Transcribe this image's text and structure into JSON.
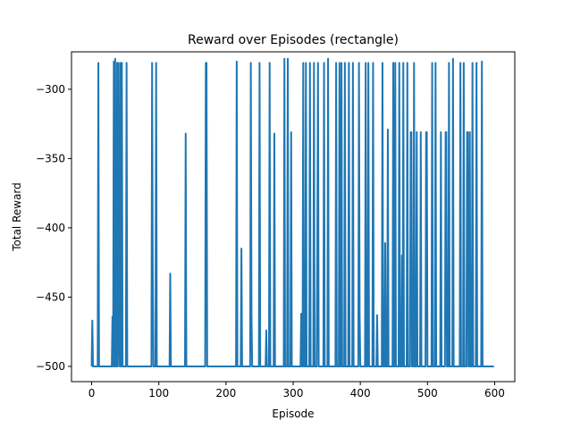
{
  "chart_data": {
    "type": "line",
    "title": "Reward over Episodes (rectangle)",
    "xlabel": "Episode",
    "ylabel": "Total Reward",
    "xlim": [
      -30,
      630
    ],
    "ylim": [
      -511,
      -273
    ],
    "xticks": [
      0,
      100,
      200,
      300,
      400,
      500,
      600
    ],
    "yticks": [
      -500,
      -450,
      -400,
      -350,
      -300
    ],
    "ytick_labels": [
      "−500",
      "−450",
      "−400",
      "−350",
      "−300"
    ],
    "grid": false,
    "line_color": "#1f77b4",
    "series": [
      {
        "points": [
          [
            0,
            -500
          ],
          [
            1,
            -467
          ],
          [
            2,
            -500
          ],
          [
            9,
            -500
          ],
          [
            10,
            -281
          ],
          [
            11,
            -500
          ],
          [
            30,
            -500
          ],
          [
            31,
            -464
          ],
          [
            32,
            -500
          ],
          [
            33,
            -280
          ],
          [
            34,
            -500
          ],
          [
            35,
            -278
          ],
          [
            36,
            -500
          ],
          [
            37,
            -500
          ],
          [
            38,
            -281
          ],
          [
            39,
            -500
          ],
          [
            40,
            -281
          ],
          [
            41,
            -471
          ],
          [
            42,
            -500
          ],
          [
            43,
            -281
          ],
          [
            44,
            -500
          ],
          [
            45,
            -281
          ],
          [
            46,
            -500
          ],
          [
            51,
            -500
          ],
          [
            52,
            -281
          ],
          [
            53,
            -500
          ],
          [
            89,
            -500
          ],
          [
            90,
            -281
          ],
          [
            91,
            -433
          ],
          [
            92,
            -500
          ],
          [
            95,
            -500
          ],
          [
            96,
            -281
          ],
          [
            97,
            -500
          ],
          [
            116,
            -500
          ],
          [
            117,
            -433
          ],
          [
            118,
            -500
          ],
          [
            139,
            -500
          ],
          [
            140,
            -332
          ],
          [
            141,
            -500
          ],
          [
            169,
            -500
          ],
          [
            170,
            -281
          ],
          [
            171,
            -281
          ],
          [
            172,
            -500
          ],
          [
            215,
            -500
          ],
          [
            216,
            -280
          ],
          [
            217,
            -500
          ],
          [
            222,
            -500
          ],
          [
            223,
            -415
          ],
          [
            224,
            -500
          ],
          [
            236,
            -500
          ],
          [
            237,
            -281
          ],
          [
            238,
            -462
          ],
          [
            239,
            -500
          ],
          [
            249,
            -500
          ],
          [
            250,
            -281
          ],
          [
            251,
            -500
          ],
          [
            259,
            -500
          ],
          [
            260,
            -474
          ],
          [
            261,
            -500
          ],
          [
            264,
            -500
          ],
          [
            265,
            -281
          ],
          [
            266,
            -500
          ],
          [
            271,
            -500
          ],
          [
            272,
            -332
          ],
          [
            273,
            -500
          ],
          [
            286,
            -500
          ],
          [
            287,
            -278
          ],
          [
            288,
            -500
          ],
          [
            291,
            -500
          ],
          [
            292,
            -278
          ],
          [
            293,
            -500
          ],
          [
            296,
            -500
          ],
          [
            297,
            -331
          ],
          [
            298,
            -500
          ],
          [
            311,
            -500
          ],
          [
            312,
            -462
          ],
          [
            313,
            -500
          ],
          [
            314,
            -500
          ],
          [
            315,
            -281
          ],
          [
            316,
            -500
          ],
          [
            318,
            -500
          ],
          [
            319,
            -281
          ],
          [
            320,
            -500
          ],
          [
            324,
            -500
          ],
          [
            325,
            -281
          ],
          [
            326,
            -500
          ],
          [
            330,
            -500
          ],
          [
            331,
            -281
          ],
          [
            332,
            -500
          ],
          [
            335,
            -500
          ],
          [
            336,
            -411
          ],
          [
            337,
            -281
          ],
          [
            338,
            -500
          ],
          [
            345,
            -500
          ],
          [
            346,
            -281
          ],
          [
            347,
            -500
          ],
          [
            351,
            -500
          ],
          [
            352,
            -278
          ],
          [
            353,
            -500
          ],
          [
            363,
            -500
          ],
          [
            364,
            -281
          ],
          [
            365,
            -500
          ],
          [
            368,
            -500
          ],
          [
            369,
            -281
          ],
          [
            370,
            -500
          ],
          [
            371,
            -500
          ],
          [
            372,
            -281
          ],
          [
            373,
            -500
          ],
          [
            376,
            -500
          ],
          [
            377,
            -281
          ],
          [
            378,
            -500
          ],
          [
            382,
            -500
          ],
          [
            383,
            -281
          ],
          [
            384,
            -500
          ],
          [
            388,
            -500
          ],
          [
            389,
            -281
          ],
          [
            390,
            -500
          ],
          [
            397,
            -500
          ],
          [
            398,
            -281
          ],
          [
            399,
            -462
          ],
          [
            400,
            -500
          ],
          [
            407,
            -500
          ],
          [
            408,
            -281
          ],
          [
            409,
            -500
          ],
          [
            411,
            -500
          ],
          [
            412,
            -281
          ],
          [
            413,
            -500
          ],
          [
            418,
            -500
          ],
          [
            419,
            -281
          ],
          [
            420,
            -500
          ],
          [
            424,
            -500
          ],
          [
            425,
            -463
          ],
          [
            426,
            -500
          ],
          [
            432,
            -500
          ],
          [
            433,
            -281
          ],
          [
            434,
            -500
          ],
          [
            436,
            -500
          ],
          [
            437,
            -411
          ],
          [
            438,
            -500
          ],
          [
            440,
            -500
          ],
          [
            441,
            -329
          ],
          [
            442,
            -500
          ],
          [
            448,
            -500
          ],
          [
            449,
            -281
          ],
          [
            450,
            -500
          ],
          [
            451,
            -500
          ],
          [
            452,
            -281
          ],
          [
            453,
            -500
          ],
          [
            457,
            -500
          ],
          [
            458,
            -281
          ],
          [
            459,
            -500
          ],
          [
            461,
            -500
          ],
          [
            462,
            -420
          ],
          [
            463,
            -500
          ],
          [
            464,
            -281
          ],
          [
            465,
            -500
          ],
          [
            469,
            -500
          ],
          [
            470,
            -281
          ],
          [
            471,
            -500
          ],
          [
            474,
            -500
          ],
          [
            475,
            -331
          ],
          [
            476,
            -331
          ],
          [
            477,
            -500
          ],
          [
            479,
            -500
          ],
          [
            480,
            -281
          ],
          [
            481,
            -500
          ],
          [
            483,
            -500
          ],
          [
            484,
            -331
          ],
          [
            485,
            -500
          ],
          [
            489,
            -500
          ],
          [
            490,
            -331
          ],
          [
            491,
            -500
          ],
          [
            497,
            -500
          ],
          [
            498,
            -331
          ],
          [
            499,
            -331
          ],
          [
            500,
            -500
          ],
          [
            506,
            -500
          ],
          [
            507,
            -281
          ],
          [
            508,
            -500
          ],
          [
            511,
            -500
          ],
          [
            512,
            -281
          ],
          [
            513,
            -500
          ],
          [
            519,
            -500
          ],
          [
            520,
            -331
          ],
          [
            521,
            -500
          ],
          [
            526,
            -500
          ],
          [
            527,
            -331
          ],
          [
            528,
            -331
          ],
          [
            529,
            -500
          ],
          [
            531,
            -500
          ],
          [
            532,
            -281
          ],
          [
            533,
            -500
          ],
          [
            537,
            -500
          ],
          [
            538,
            -278
          ],
          [
            539,
            -500
          ],
          [
            548,
            -500
          ],
          [
            549,
            -281
          ],
          [
            550,
            -500
          ],
          [
            553,
            -500
          ],
          [
            554,
            -281
          ],
          [
            555,
            -500
          ],
          [
            558,
            -500
          ],
          [
            559,
            -331
          ],
          [
            560,
            -331
          ],
          [
            561,
            -500
          ],
          [
            562,
            -500
          ],
          [
            563,
            -331
          ],
          [
            564,
            -500
          ],
          [
            566,
            -500
          ],
          [
            567,
            -281
          ],
          [
            568,
            -500
          ],
          [
            572,
            -500
          ],
          [
            573,
            -281
          ],
          [
            574,
            -500
          ],
          [
            580,
            -500
          ],
          [
            581,
            -280
          ],
          [
            582,
            -500
          ],
          [
            599,
            -500
          ]
        ]
      }
    ]
  }
}
